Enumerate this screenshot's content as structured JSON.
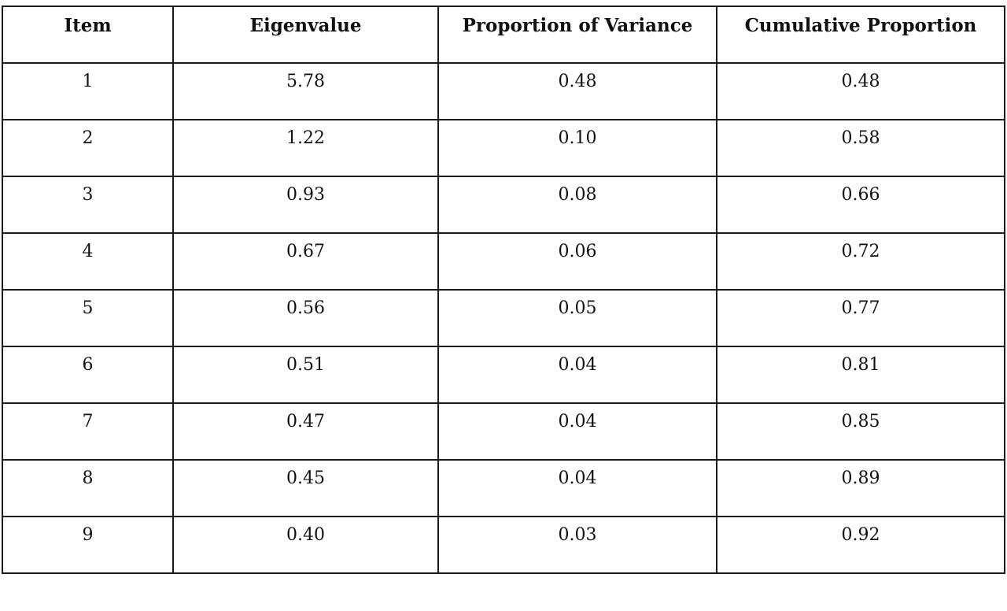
{
  "table": {
    "headers": [
      "Item",
      "Eigenvalue",
      "Proportion of Variance",
      "Cumulative Proportion"
    ],
    "rows": [
      [
        "1",
        "5.78",
        "0.48",
        "0.48"
      ],
      [
        "2",
        "1.22",
        "0.10",
        "0.58"
      ],
      [
        "3",
        "0.93",
        "0.08",
        "0.66"
      ],
      [
        "4",
        "0.67",
        "0.06",
        "0.72"
      ],
      [
        "5",
        "0.56",
        "0.05",
        "0.77"
      ],
      [
        "6",
        "0.51",
        "0.04",
        "0.81"
      ],
      [
        "7",
        "0.47",
        "0.04",
        "0.85"
      ],
      [
        "8",
        "0.45",
        "0.04",
        "0.89"
      ],
      [
        "9",
        "0.40",
        "0.03",
        "0.92"
      ]
    ]
  }
}
